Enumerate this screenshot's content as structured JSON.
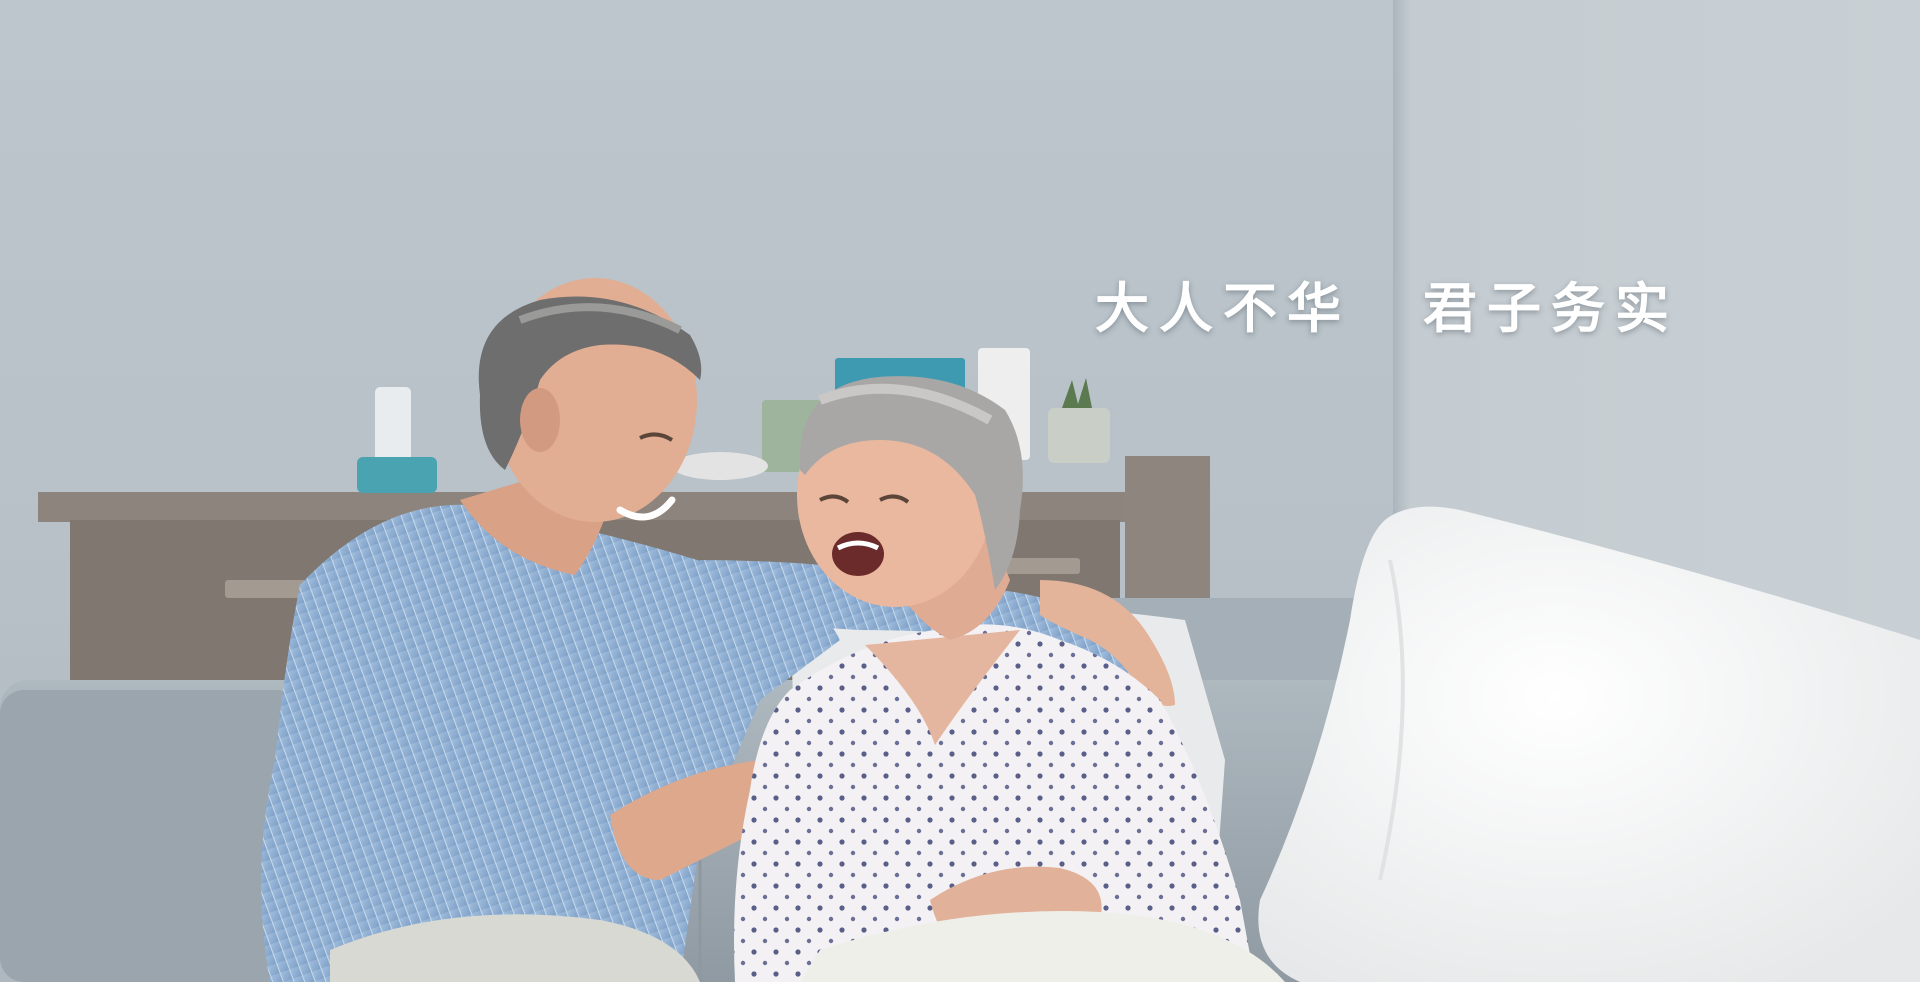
{
  "hero": {
    "slogan_left": "大人不华",
    "slogan_right": "君子务实",
    "photo_subject": "elderly-couple-laughing-on-sofa"
  },
  "colors": {
    "wall": "#bcc6cc",
    "sofa": "#a3aeb6",
    "shirt_man": "#8fb0d4",
    "blouse_woman": "#f2f0f2",
    "pillow": "#f6f6f4",
    "slogan_text": "#ffffff"
  }
}
